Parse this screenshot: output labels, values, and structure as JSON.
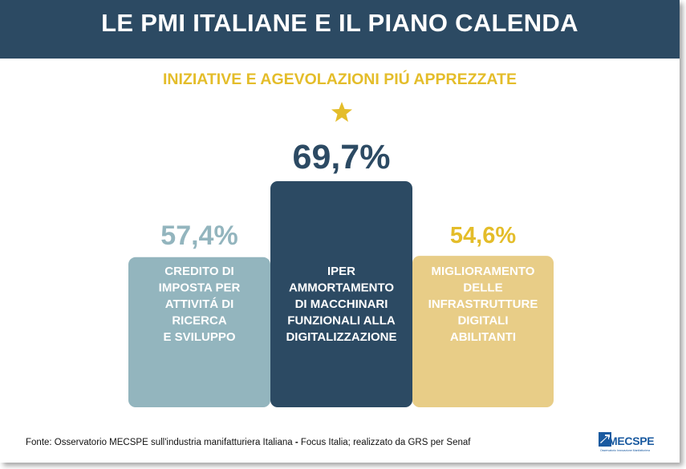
{
  "header": {
    "title": "LE PMI ITALIANE E IL PIANO CALENDA"
  },
  "subtitle": "INIZIATIVE E AGEVOLAZIONI PIÚ APPREZZATE",
  "colors": {
    "header": "#2c4a63",
    "accent": "#e4bd2a",
    "bar1": "#93b5be",
    "bar2": "#2c4a63",
    "bar3": "#e8cd87"
  },
  "chart_data": {
    "type": "bar",
    "categories": [
      [
        "CREDITO DI",
        "IMPOSTA PER",
        "ATTIVITÁ DI",
        "RICERCA",
        "E SVILUPPO"
      ],
      [
        "IPER",
        "AMMORTAMENTO",
        "DI MACCHINARI",
        "FUNZIONALI ALLA",
        "DIGITALIZZAZIONE"
      ],
      [
        "MIGLIORAMENTO",
        "DELLE",
        "INFRASTRUTTURE",
        "DIGITALI",
        "ABILITANTI"
      ]
    ],
    "values": [
      57.4,
      69.7,
      54.6
    ],
    "value_labels": [
      "57,4%",
      "69,7%",
      "54,6%"
    ],
    "highlight": "star-icon above highest bar"
  },
  "footer": {
    "source_prefix": "Fonte: Osservatorio MECSPE sull'industria manifatturiera Italiana ",
    "source_dash": "-",
    "source_suffix": " Focus Italia; realizzato da GRS per Senaf",
    "logo_text": "MECSPE",
    "logo_tagline": "Osservatorio Innovazione Manifatturiera"
  }
}
